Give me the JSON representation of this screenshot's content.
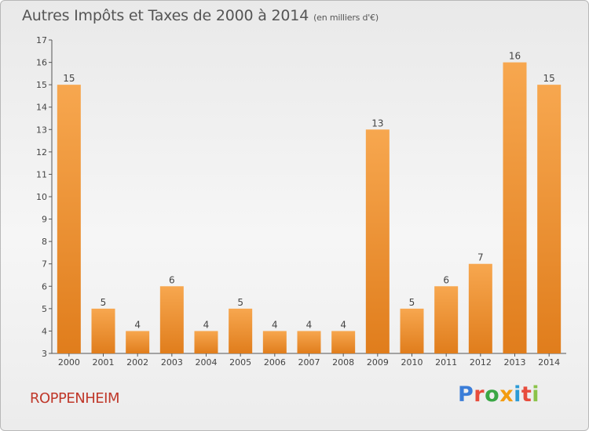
{
  "title": "Autres Impôts et Taxes de 2000 à 2014",
  "subtitle": "(en milliers d'€)",
  "location": "ROPPENHEIM",
  "logo": {
    "text": "Proxiti",
    "colors": [
      "#3b7dd8",
      "#e74c3c",
      "#3aa745",
      "#f39c12",
      "#2c9bd6",
      "#e74c3c",
      "#8bc34a"
    ]
  },
  "colors": {
    "bar_light": "#f7a74f",
    "bar_dark": "#e07d1c",
    "axis": "#555555",
    "title": "#555555",
    "location": "#c0392b"
  },
  "chart_data": {
    "type": "bar",
    "categories": [
      "2000",
      "2001",
      "2002",
      "2003",
      "2004",
      "2005",
      "2006",
      "2007",
      "2008",
      "2009",
      "2010",
      "2011",
      "2012",
      "2013",
      "2014"
    ],
    "values": [
      15,
      5,
      4,
      6,
      4,
      5,
      4,
      4,
      4,
      13,
      5,
      6,
      7,
      16,
      15
    ],
    "data_labels": [
      "15",
      "5",
      "4",
      "6",
      "4",
      "5",
      "4",
      "4",
      "4",
      "13",
      "5",
      "6",
      "7",
      "16",
      "15"
    ],
    "ylim": [
      3,
      17
    ],
    "yticks": [
      "3",
      "4",
      "5",
      "6",
      "7",
      "8",
      "9",
      "10",
      "11",
      "12",
      "13",
      "14",
      "15",
      "16",
      "17"
    ],
    "grid": false,
    "legend": "none"
  }
}
